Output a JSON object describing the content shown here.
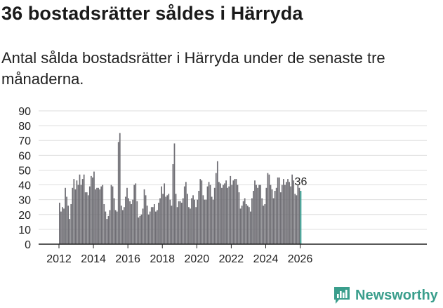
{
  "header": {
    "title": "36 bostadsrätter såldes i Härryda",
    "subtitle": "Antal sålda bostadsrätter i Härryda under de senaste tre månaderna."
  },
  "brand": {
    "name": "Newsworthy",
    "color": "#3a9e8c"
  },
  "colors": {
    "bar": "#6f6e74",
    "highlight": "#2a9d8f",
    "grid": "#dddddd",
    "axis": "#222222"
  },
  "chart_data": {
    "type": "bar",
    "title": "36 bostadsrätter såldes i Härryda",
    "subtitle": "Antal sålda bostadsrätter i Härryda under de senaste tre månaderna.",
    "xlabel": "",
    "ylabel": "",
    "ylim": [
      0,
      90
    ],
    "yticks": [
      0,
      10,
      20,
      30,
      40,
      50,
      60,
      70,
      80,
      90
    ],
    "x_start": {
      "year": 2012,
      "month": 1
    },
    "x_ticks": [
      "2012",
      "2014",
      "2016",
      "2018",
      "2020",
      "2022",
      "2024",
      "2026"
    ],
    "grid": true,
    "series": [
      {
        "name": "Antal sålda bostadsrätter",
        "values": [
          28,
          22,
          25,
          24,
          38,
          32,
          26,
          17,
          27,
          38,
          44,
          37,
          43,
          40,
          47,
          40,
          44,
          47,
          35,
          35,
          33,
          39,
          46,
          45,
          49,
          37,
          38,
          38,
          37,
          39,
          40,
          27,
          22,
          17,
          19,
          23,
          40,
          39,
          31,
          23,
          22,
          69,
          75,
          26,
          23,
          25,
          32,
          38,
          31,
          29,
          27,
          30,
          40,
          41,
          29,
          18,
          19,
          20,
          24,
          37,
          33,
          26,
          20,
          22,
          25,
          25,
          27,
          22,
          23,
          28,
          31,
          39,
          34,
          41,
          32,
          33,
          34,
          30,
          26,
          54,
          68,
          34,
          25,
          29,
          29,
          28,
          31,
          39,
          42,
          34,
          25,
          24,
          31,
          33,
          30,
          25,
          30,
          36,
          44,
          43,
          33,
          30,
          30,
          39,
          42,
          40,
          32,
          30,
          38,
          48,
          56,
          42,
          41,
          38,
          40,
          41,
          43,
          38,
          39,
          46,
          40,
          43,
          44,
          44,
          40,
          35,
          24,
          26,
          29,
          31,
          27,
          26,
          25,
          22,
          31,
          36,
          43,
          40,
          38,
          40,
          40,
          31,
          26,
          27,
          38,
          48,
          47,
          40,
          37,
          31,
          36,
          38,
          45,
          45,
          35,
          40,
          44,
          40,
          42,
          44,
          42,
          39,
          47,
          43,
          34,
          33,
          40,
          38,
          36
        ]
      }
    ],
    "annotations": [
      {
        "text": "36",
        "target": "last"
      }
    ]
  }
}
